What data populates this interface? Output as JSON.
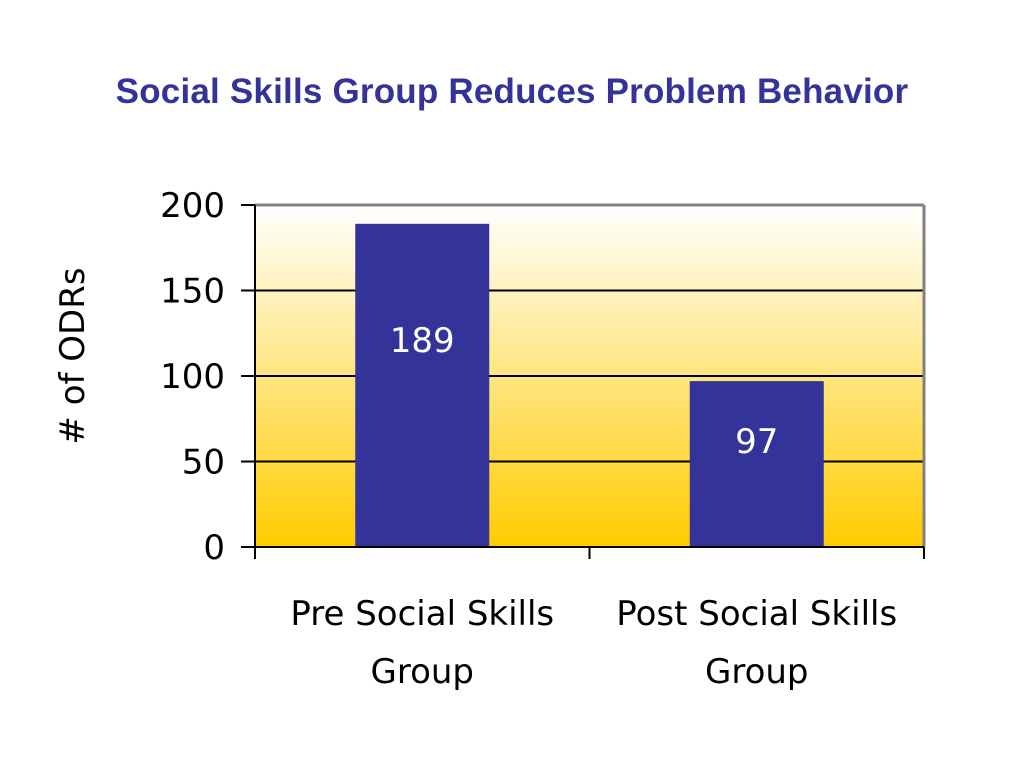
{
  "slide": {
    "title": "Social Skills Group Reduces Problem Behavior"
  },
  "chart_data": {
    "type": "bar",
    "title": "Social Skills Group Reduces Problem Behavior",
    "xlabel": "",
    "ylabel": "# of ODRs",
    "categories": [
      [
        "Pre Social Skills",
        "Group"
      ],
      [
        "Post Social Skills",
        "Group"
      ]
    ],
    "values": [
      189,
      97
    ],
    "data_labels": [
      "189",
      "97"
    ],
    "ylim": [
      0,
      200
    ],
    "yticks": [
      0,
      50,
      100,
      150,
      200
    ],
    "grid": true,
    "legend": "none",
    "colors": {
      "bar": "#333399",
      "background_top": "#ffffff",
      "background_bottom": "#ffcc00",
      "title": "#333399",
      "gridline": "#000000",
      "plot_border": "#808080"
    }
  }
}
